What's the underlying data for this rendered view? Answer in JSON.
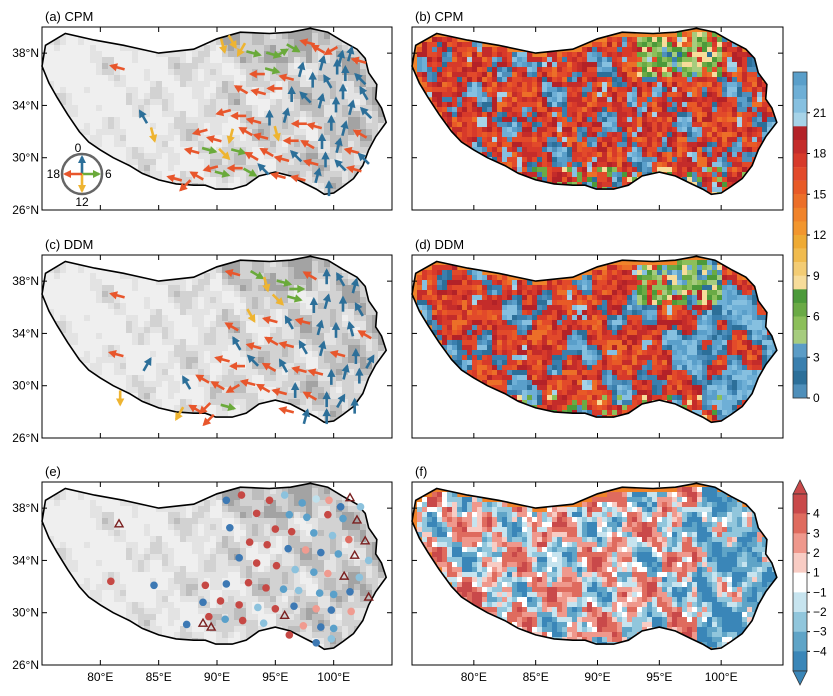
{
  "panels": [
    {
      "id": "a",
      "title": "(a) CPM",
      "kind": "arrows"
    },
    {
      "id": "b",
      "title": "(b) CPM",
      "kind": "gridded-phase"
    },
    {
      "id": "c",
      "title": "(c) DDM",
      "kind": "arrows"
    },
    {
      "id": "d",
      "title": "(d) DDM",
      "kind": "gridded-phase"
    },
    {
      "id": "e",
      "title": "(e)",
      "kind": "station-diff"
    },
    {
      "id": "f",
      "title": "(f)",
      "kind": "gridded-diff"
    }
  ],
  "axes": {
    "lat_ticks": [
      "38°N",
      "34°N",
      "30°N",
      "26°N"
    ],
    "lat_values": [
      38,
      34,
      30,
      26
    ],
    "lon_ticks": [
      "80°E",
      "85°E",
      "90°E",
      "95°E",
      "100°E"
    ],
    "lon_values": [
      80,
      85,
      90,
      95,
      100
    ],
    "lat_range": [
      26,
      40
    ],
    "lon_range": [
      75,
      105
    ]
  },
  "clock_legend": {
    "top": "0",
    "right": "6",
    "bottom": "12",
    "left": "18"
  },
  "colorbar_phase": {
    "labels": [
      "21",
      "18",
      "15",
      "12",
      "9",
      "6",
      "3",
      "0"
    ],
    "label_values": [
      21,
      18,
      15,
      12,
      9,
      6,
      3,
      0
    ],
    "min": 0,
    "max": 24,
    "colors": [
      "#4f8fba",
      "#2c6f99",
      "#3a7fae",
      "#5b9cc6",
      "#a6cc7e",
      "#8cbf5a",
      "#6aaa45",
      "#4c9a3a",
      "#f7dc9a",
      "#f3cc74",
      "#f0bb4e",
      "#eeaa34",
      "#f2962e",
      "#f0832a",
      "#ec6f28",
      "#e85a26",
      "#e24a2a",
      "#d73a2a",
      "#c42c2a",
      "#b32228",
      "#a6d3e8",
      "#86c0e0",
      "#6eafd6",
      "#5a9fca"
    ]
  },
  "colorbar_diff": {
    "labels": [
      "4",
      "3",
      "2",
      "1",
      "−1",
      "−2",
      "−3",
      "−4"
    ],
    "label_values": [
      4,
      3,
      2,
      1,
      -1,
      -2,
      -3,
      -4
    ],
    "colors": [
      "#c9494a",
      "#df6b5e",
      "#ef988c",
      "#f8ccc4",
      "#ffffff",
      "#c7e4ef",
      "#91c6dc",
      "#5fa4c7",
      "#3a86b8"
    ]
  },
  "chart_data": [
    {
      "type": "scatter",
      "title": "(a) CPM",
      "xlabel": "",
      "ylabel": "",
      "xlim": [
        75,
        105
      ],
      "ylim": [
        26,
        40
      ],
      "note_series": "arrows pointing toward diurnal peak hour (0=up,6=right,12=down,18=left)",
      "points": [
        [
          81.5,
          36.9,
          19
        ],
        [
          83.7,
          33.1,
          22
        ],
        [
          84.5,
          31.8,
          11
        ],
        [
          87.3,
          27.9,
          15
        ],
        [
          88.3,
          28.6,
          20
        ],
        [
          89.5,
          29.2,
          17
        ],
        [
          90.5,
          38.6,
          11
        ],
        [
          91.3,
          38.9,
          10
        ],
        [
          92.1,
          38.3,
          14
        ],
        [
          93.1,
          38.0,
          7
        ],
        [
          94.8,
          37.9,
          7
        ],
        [
          95.5,
          38.0,
          4
        ],
        [
          96.5,
          38.4,
          8
        ],
        [
          97.8,
          38.8,
          19
        ],
        [
          98.7,
          38.3,
          20
        ],
        [
          99.8,
          38.2,
          16
        ],
        [
          100.6,
          37.6,
          1
        ],
        [
          101.4,
          37.9,
          1
        ],
        [
          102.2,
          37.4,
          19
        ],
        [
          99.0,
          37.2,
          1
        ],
        [
          100.3,
          36.9,
          0
        ],
        [
          101.0,
          36.4,
          0
        ],
        [
          102.3,
          36.0,
          21
        ],
        [
          93.5,
          36.4,
          18
        ],
        [
          94.7,
          36.7,
          7
        ],
        [
          96.0,
          36.1,
          19
        ],
        [
          97.2,
          36.7,
          1
        ],
        [
          98.2,
          35.9,
          0
        ],
        [
          99.5,
          35.8,
          22
        ],
        [
          100.8,
          35.0,
          0
        ],
        [
          102.6,
          34.9,
          22
        ],
        [
          92.1,
          35.2,
          20
        ],
        [
          93.6,
          35.0,
          19
        ],
        [
          95.0,
          35.3,
          18
        ],
        [
          96.4,
          34.8,
          0
        ],
        [
          97.6,
          34.6,
          21
        ],
        [
          98.9,
          34.3,
          1
        ],
        [
          100.2,
          34.0,
          0
        ],
        [
          101.5,
          33.8,
          1
        ],
        [
          102.8,
          33.4,
          21
        ],
        [
          90.6,
          33.5,
          17
        ],
        [
          91.9,
          33.2,
          18
        ],
        [
          93.2,
          32.8,
          19
        ],
        [
          94.5,
          33.0,
          0
        ],
        [
          95.9,
          33.2,
          1
        ],
        [
          97.1,
          32.6,
          18
        ],
        [
          98.4,
          32.4,
          19
        ],
        [
          99.8,
          32.6,
          0
        ],
        [
          100.9,
          32.2,
          1
        ],
        [
          102.3,
          31.8,
          20
        ],
        [
          88.6,
          32.0,
          17
        ],
        [
          89.8,
          31.4,
          19
        ],
        [
          91.2,
          31.7,
          13
        ],
        [
          92.5,
          32.0,
          20
        ],
        [
          93.8,
          31.6,
          19
        ],
        [
          95.1,
          31.9,
          11
        ],
        [
          96.4,
          31.3,
          18
        ],
        [
          97.8,
          31.0,
          20
        ],
        [
          99.0,
          31.2,
          0
        ],
        [
          100.4,
          30.9,
          1
        ],
        [
          101.6,
          30.5,
          19
        ],
        [
          102.6,
          29.9,
          21
        ],
        [
          87.9,
          30.5,
          19
        ],
        [
          89.3,
          30.6,
          7
        ],
        [
          90.6,
          30.3,
          9
        ],
        [
          91.8,
          30.5,
          7
        ],
        [
          93.0,
          30.1,
          20
        ],
        [
          94.3,
          30.4,
          20
        ],
        [
          95.6,
          29.9,
          19
        ],
        [
          96.8,
          30.1,
          21
        ],
        [
          98.1,
          29.6,
          19
        ],
        [
          99.3,
          29.8,
          0
        ],
        [
          100.6,
          29.4,
          21
        ],
        [
          101.8,
          29.1,
          19
        ],
        [
          86.4,
          28.4,
          19
        ],
        [
          90.4,
          28.8,
          7
        ],
        [
          91.6,
          29.2,
          18
        ],
        [
          92.8,
          28.9,
          8
        ],
        [
          94.0,
          29.1,
          21
        ],
        [
          95.3,
          28.6,
          19
        ],
        [
          97.0,
          28.4,
          19
        ],
        [
          98.6,
          28.6,
          1
        ],
        [
          99.6,
          27.6,
          0
        ]
      ]
    },
    {
      "type": "scatter",
      "title": "(c) DDM",
      "xlabel": "",
      "ylabel": "",
      "xlim": [
        75,
        105
      ],
      "ylim": [
        26,
        40
      ],
      "points": [
        [
          81.5,
          36.9,
          19
        ],
        [
          81.4,
          32.4,
          19
        ],
        [
          84.0,
          31.6,
          2
        ],
        [
          81.7,
          29.1,
          12
        ],
        [
          86.8,
          27.9,
          14
        ],
        [
          88.2,
          28.2,
          20
        ],
        [
          89.0,
          28.3,
          15
        ],
        [
          91.4,
          38.6,
          19
        ],
        [
          93.4,
          38.5,
          8
        ],
        [
          94.2,
          37.8,
          11
        ],
        [
          95.7,
          37.9,
          7
        ],
        [
          96.8,
          37.4,
          6
        ],
        [
          98.0,
          38.4,
          20
        ],
        [
          99.4,
          38.3,
          0
        ],
        [
          100.6,
          38.1,
          22
        ],
        [
          101.8,
          37.6,
          1
        ],
        [
          95.2,
          36.6,
          9
        ],
        [
          96.6,
          36.7,
          7
        ],
        [
          98.3,
          36.1,
          0
        ],
        [
          99.4,
          36.4,
          1
        ],
        [
          100.8,
          36.2,
          0
        ],
        [
          102.2,
          35.8,
          22
        ],
        [
          91.3,
          34.5,
          20
        ],
        [
          92.9,
          35.4,
          10
        ],
        [
          94.6,
          35.0,
          19
        ],
        [
          96.2,
          34.8,
          22
        ],
        [
          97.4,
          34.9,
          19
        ],
        [
          98.8,
          34.4,
          1
        ],
        [
          100.2,
          34.2,
          0
        ],
        [
          101.5,
          34.3,
          23
        ],
        [
          102.7,
          33.9,
          20
        ],
        [
          91.7,
          33.2,
          22
        ],
        [
          93.2,
          33.0,
          19
        ],
        [
          94.7,
          33.4,
          20
        ],
        [
          96.0,
          33.1,
          19
        ],
        [
          97.4,
          32.9,
          22
        ],
        [
          99.0,
          32.8,
          1
        ],
        [
          100.4,
          32.4,
          19
        ],
        [
          101.9,
          32.2,
          0
        ],
        [
          103.1,
          31.8,
          2
        ],
        [
          90.5,
          32.0,
          19
        ],
        [
          91.8,
          31.5,
          18
        ],
        [
          93.1,
          31.9,
          21
        ],
        [
          94.5,
          31.4,
          20
        ],
        [
          95.7,
          31.5,
          22
        ],
        [
          97.1,
          31.2,
          19
        ],
        [
          98.5,
          31.0,
          19
        ],
        [
          99.8,
          30.6,
          0
        ],
        [
          101.0,
          31.0,
          1
        ],
        [
          102.2,
          30.7,
          0
        ],
        [
          87.4,
          30.2,
          22
        ],
        [
          88.8,
          30.5,
          20
        ],
        [
          90.1,
          30.0,
          20
        ],
        [
          91.4,
          29.8,
          16
        ],
        [
          92.7,
          30.2,
          19
        ],
        [
          94.0,
          29.8,
          20
        ],
        [
          95.4,
          29.5,
          19
        ],
        [
          96.7,
          29.6,
          0
        ],
        [
          98.0,
          29.2,
          20
        ],
        [
          99.4,
          28.9,
          0
        ],
        [
          100.6,
          28.8,
          2
        ],
        [
          101.8,
          28.4,
          0
        ],
        [
          90.9,
          28.4,
          7
        ],
        [
          96.0,
          28.1,
          19
        ],
        [
          97.6,
          27.6,
          1
        ],
        [
          99.4,
          27.6,
          0
        ],
        [
          89.3,
          27.4,
          15
        ]
      ]
    },
    {
      "type": "scatter",
      "title": "(e)",
      "xlabel": "",
      "ylabel": "",
      "xlim": [
        75,
        105
      ],
      "ylim": [
        26,
        40
      ],
      "points": [
        [
          90.8,
          38.6,
          -4
        ],
        [
          92.1,
          39.0,
          3
        ],
        [
          94.5,
          38.6,
          3
        ],
        [
          95.8,
          39.0,
          -2
        ],
        [
          97.3,
          38.4,
          -3
        ],
        [
          98.5,
          38.7,
          -1
        ],
        [
          100.6,
          38.1,
          -4
        ],
        [
          101.4,
          38.8,
          9
        ],
        [
          99.6,
          38.6,
          1
        ],
        [
          102.3,
          38.1,
          -2
        ],
        [
          93.4,
          37.6,
          3
        ],
        [
          96.2,
          37.5,
          -3
        ],
        [
          97.7,
          37.3,
          -3
        ],
        [
          99.5,
          37.5,
          3
        ],
        [
          100.8,
          37.2,
          -3
        ],
        [
          102.0,
          37.1,
          9
        ],
        [
          91.1,
          36.5,
          -4
        ],
        [
          95.0,
          36.4,
          3
        ],
        [
          96.4,
          36.2,
          3
        ],
        [
          98.3,
          36.1,
          -3
        ],
        [
          99.9,
          35.9,
          -2
        ],
        [
          101.3,
          35.6,
          2
        ],
        [
          102.7,
          35.5,
          9
        ],
        [
          92.8,
          35.4,
          3
        ],
        [
          94.3,
          35.2,
          3
        ],
        [
          96.1,
          34.9,
          -4
        ],
        [
          97.6,
          34.8,
          1
        ],
        [
          98.9,
          34.6,
          -4
        ],
        [
          100.4,
          34.5,
          -3
        ],
        [
          101.8,
          34.4,
          9
        ],
        [
          103.0,
          34.0,
          -2
        ],
        [
          91.9,
          34.2,
          -4
        ],
        [
          93.4,
          33.8,
          3
        ],
        [
          95.1,
          33.6,
          3
        ],
        [
          96.7,
          33.3,
          -2
        ],
        [
          98.3,
          33.1,
          -3
        ],
        [
          99.5,
          33.0,
          1
        ],
        [
          100.9,
          32.8,
          9
        ],
        [
          102.2,
          32.7,
          -2
        ],
        [
          80.9,
          32.4,
          3
        ],
        [
          84.6,
          32.1,
          -4
        ],
        [
          89.0,
          32.1,
          3
        ],
        [
          90.8,
          32.2,
          -4
        ],
        [
          92.7,
          32.3,
          3
        ],
        [
          94.2,
          31.9,
          3
        ],
        [
          95.7,
          31.8,
          -3
        ],
        [
          97.0,
          31.7,
          -2
        ],
        [
          98.8,
          31.5,
          -3
        ],
        [
          100.0,
          31.4,
          -3
        ],
        [
          101.4,
          31.6,
          -4
        ],
        [
          103.0,
          31.2,
          9
        ],
        [
          88.8,
          30.8,
          -4
        ],
        [
          90.3,
          30.9,
          3
        ],
        [
          91.9,
          30.6,
          3
        ],
        [
          93.5,
          30.4,
          -2
        ],
        [
          95.0,
          30.3,
          3
        ],
        [
          96.6,
          30.5,
          -4
        ],
        [
          98.5,
          30.3,
          1
        ],
        [
          99.8,
          30.2,
          -4
        ],
        [
          101.5,
          30.1,
          1
        ],
        [
          89.3,
          29.7,
          3
        ],
        [
          90.7,
          29.5,
          -3
        ],
        [
          92.2,
          29.4,
          3
        ],
        [
          94.0,
          29.2,
          -2
        ],
        [
          95.8,
          29.8,
          9
        ],
        [
          97.4,
          29.0,
          1
        ],
        [
          98.9,
          28.9,
          -4
        ],
        [
          100.0,
          28.8,
          -3
        ],
        [
          87.4,
          29.1,
          -4
        ],
        [
          88.8,
          29.2,
          9
        ],
        [
          89.5,
          28.9,
          9
        ],
        [
          96.2,
          28.3,
          3
        ],
        [
          98.5,
          27.7,
          -4
        ],
        [
          99.8,
          28.0,
          -2
        ],
        [
          81.6,
          36.8,
          9
        ]
      ]
    }
  ]
}
